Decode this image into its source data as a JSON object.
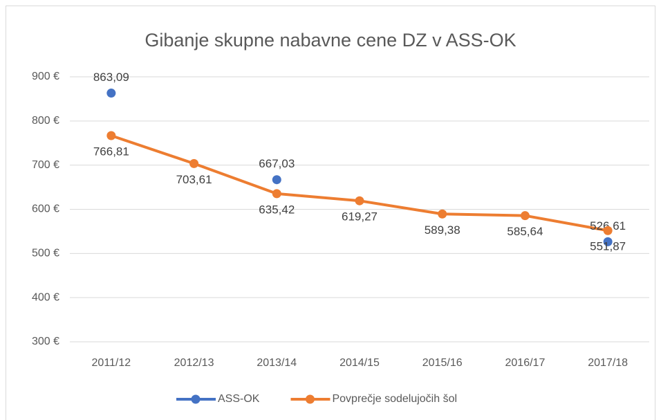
{
  "chart_data": {
    "type": "line",
    "title": "Gibanje skupne nabavne cene DZ v ASS-OK",
    "categories": [
      "2011/12",
      "2012/13",
      "2013/14",
      "2014/15",
      "2015/16",
      "2016/17",
      "2017/18"
    ],
    "series": [
      {
        "name": "ASS-OK",
        "color": "#4472c4",
        "values": [
          863.09,
          null,
          667.03,
          null,
          null,
          null,
          526.61
        ],
        "value_labels": [
          "863,09",
          null,
          "667,03",
          null,
          null,
          null,
          "526,61"
        ]
      },
      {
        "name": "Povprečje sodelujočih šol",
        "color": "#ed7d31",
        "values": [
          766.81,
          703.61,
          635.42,
          619.27,
          589.38,
          585.64,
          551.87
        ],
        "value_labels": [
          "766,81",
          "703,61",
          "635,42",
          "619,27",
          "589,38",
          "585,64",
          "551,87"
        ]
      }
    ],
    "ylim": [
      300,
      900
    ],
    "yticks": [
      {
        "value": 300,
        "label": "300 €"
      },
      {
        "value": 400,
        "label": "400 €"
      },
      {
        "value": 500,
        "label": "500 €"
      },
      {
        "value": 600,
        "label": "600 €"
      },
      {
        "value": 700,
        "label": "700 €"
      },
      {
        "value": 800,
        "label": "800 €"
      },
      {
        "value": 900,
        "label": "900 €"
      }
    ],
    "grid": true,
    "legend": "bottom"
  }
}
